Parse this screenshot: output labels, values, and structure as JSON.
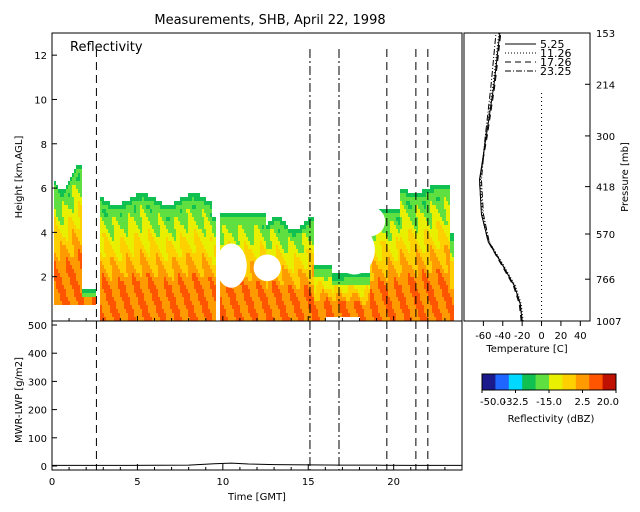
{
  "title": "Measurements, SHB, April 22, 1998",
  "chart_data": [
    {
      "type": "heatmap",
      "panel_label": "Reflectivity",
      "ylabel": "Height [km,AGL]",
      "xlim": [
        0,
        24
      ],
      "ylim": [
        0,
        13
      ],
      "yticks": [
        "2",
        "4",
        "6",
        "8",
        "10",
        "12"
      ],
      "colorbar": {
        "label": "Reflectivity (dBZ)",
        "ticks": [
          "-50.0",
          "-32.5",
          "-15.0",
          "2.5",
          "20.0"
        ],
        "colors": [
          "#1a1a8c",
          "#1f66ff",
          "#00d8ff",
          "#10c050",
          "#60e040",
          "#e8f000",
          "#ffd000",
          "#ff9a00",
          "#ff5500",
          "#c01000"
        ]
      },
      "vertical_lines": {
        "dashed": [
          2.6,
          19.6,
          21.3,
          22.0
        ],
        "dash_dot": [
          15.1,
          16.8
        ]
      }
    },
    {
      "type": "line",
      "name": "temperature_profile",
      "xlabel": "Temperature [C]",
      "ylabel": "Pressure [mb]",
      "xticks": [
        "-60",
        "-40",
        "-20",
        "0",
        "20",
        "40"
      ],
      "right_yticks": [
        "153",
        "214",
        "300",
        "418",
        "570",
        "766",
        "1007"
      ],
      "legend": [
        "5.25",
        "11.26",
        "17.26",
        "23.25"
      ],
      "series": [
        {
          "name": "5.25",
          "x": [
            -20,
            -22,
            -28,
            -40,
            -55,
            -62,
            -64,
            -57,
            -49,
            -43
          ],
          "y": [
            1007,
            900,
            800,
            700,
            600,
            500,
            400,
            300,
            214,
            153
          ]
        },
        {
          "name": "11.26",
          "x": [
            -19,
            -21,
            -27,
            -39,
            -54,
            -61,
            -63,
            -58,
            -50,
            -44
          ],
          "y": [
            1007,
            900,
            800,
            700,
            600,
            500,
            400,
            300,
            214,
            153
          ]
        },
        {
          "name": "17.26",
          "x": [
            -21,
            -23,
            -29,
            -41,
            -55,
            -62,
            -64,
            -56,
            -48,
            -42
          ],
          "y": [
            1007,
            900,
            800,
            700,
            600,
            500,
            400,
            300,
            214,
            153
          ]
        },
        {
          "name": "23.25",
          "x": [
            -20,
            -22,
            -28,
            -40,
            -54,
            -60,
            -62,
            -58,
            -52,
            -47
          ],
          "y": [
            1007,
            900,
            800,
            700,
            600,
            500,
            400,
            300,
            214,
            153
          ]
        }
      ]
    },
    {
      "type": "line",
      "name": "lwp",
      "xlabel": "Time [GMT]",
      "ylabel": "MWR-LWP [g/m2]",
      "xlim": [
        0,
        24
      ],
      "ylim": [
        0,
        500
      ],
      "xticks": [
        "0",
        "5",
        "10",
        "15",
        "20"
      ],
      "yticks": [
        "0",
        "100",
        "200",
        "300",
        "400",
        "500"
      ],
      "series": [
        {
          "x": [
            0,
            4,
            8,
            9.5,
            10.5,
            11.5,
            13,
            15,
            17,
            19,
            21,
            24
          ],
          "y": [
            2,
            2,
            3,
            8,
            10,
            7,
            5,
            4,
            3,
            3,
            2,
            2
          ]
        }
      ]
    }
  ]
}
